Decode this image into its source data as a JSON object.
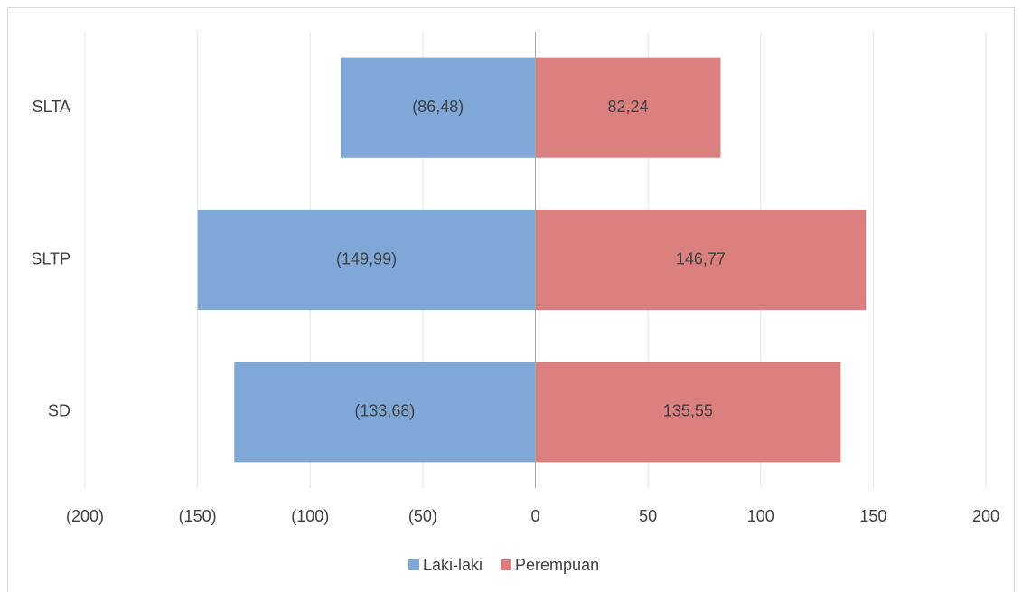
{
  "chart_data": {
    "type": "bar",
    "orientation": "horizontal",
    "categories": [
      "SD",
      "SLTP",
      "SLTA"
    ],
    "series": [
      {
        "name": "Laki-laki",
        "color": "#7fa7d8",
        "values": [
          -133.68,
          -149.99,
          -86.48
        ],
        "value_labels": [
          "(133,68)",
          "(149,99)",
          "(86,48)"
        ]
      },
      {
        "name": "Perempuan",
        "color": "#db7f7f",
        "values": [
          135.55,
          146.77,
          82.24
        ],
        "value_labels": [
          "135,55",
          "146,77",
          "82,24"
        ]
      }
    ],
    "xlim": [
      -200,
      200
    ],
    "xticks": [
      {
        "value": -200,
        "label": "(200)"
      },
      {
        "value": -150,
        "label": "(150)"
      },
      {
        "value": -100,
        "label": "(100)"
      },
      {
        "value": -50,
        "label": "(50)"
      },
      0,
      50,
      100,
      150,
      200
    ],
    "grid": true,
    "legend": "bottom"
  }
}
